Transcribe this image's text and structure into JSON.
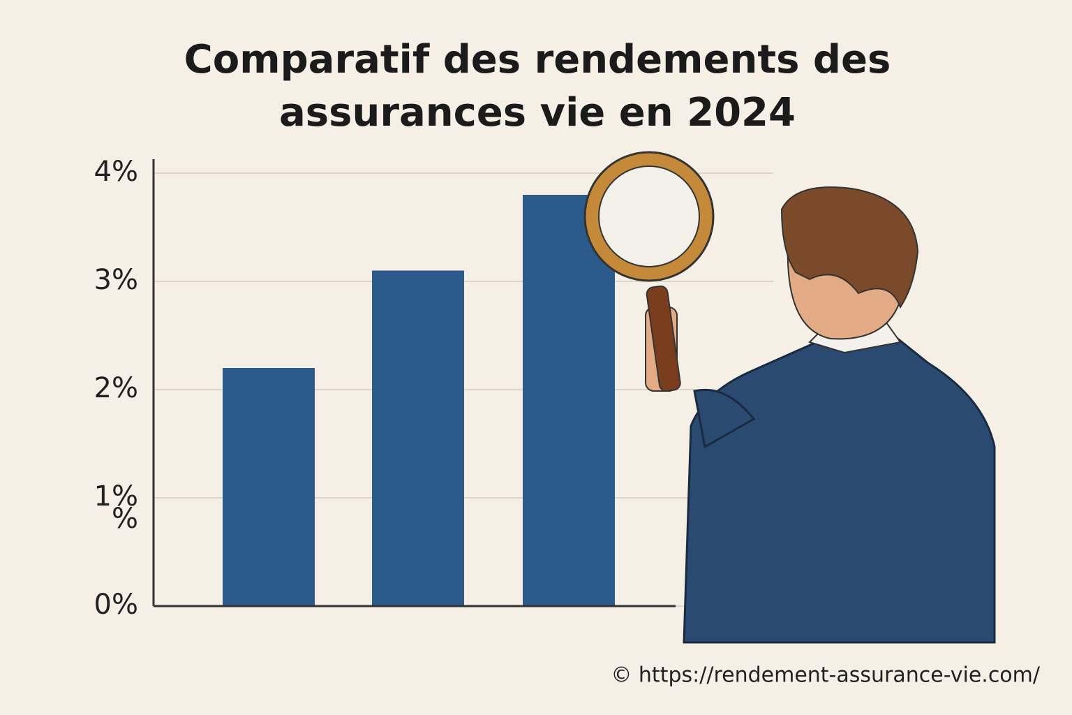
{
  "chart_data": {
    "type": "bar",
    "title": "Comparatif des rendements des assurances vie en 2024",
    "categories": [
      null,
      null,
      null
    ],
    "values": [
      2.2,
      3.1,
      3.8
    ],
    "color": "#2c5a8a",
    "ylim": [
      0,
      4
    ],
    "yticks": [
      {
        "value": 0,
        "label": "0%"
      },
      {
        "value": 1,
        "label": "1%"
      },
      {
        "value": 2,
        "label": "2%"
      },
      {
        "value": 3,
        "label": "3%"
      },
      {
        "value": 4,
        "label": "4%"
      }
    ],
    "grid": true,
    "annotations": [
      "%"
    ],
    "footer": "© https://rendement-assurance-vie.com/"
  }
}
